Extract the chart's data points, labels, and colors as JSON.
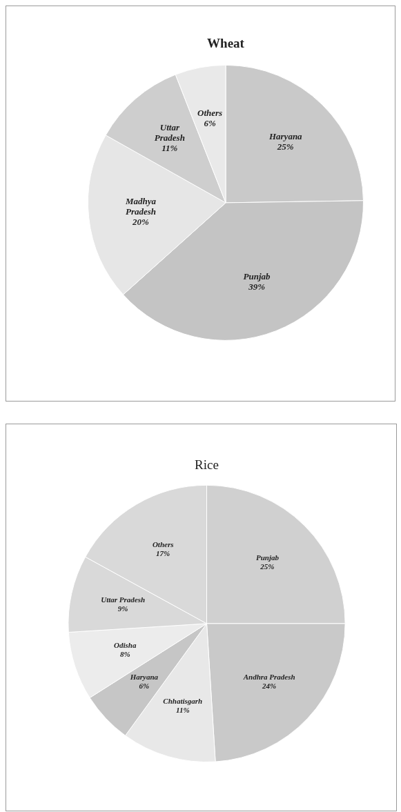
{
  "chart_data": [
    {
      "type": "pie",
      "title": "Wheat",
      "categories": [
        "Haryana",
        "Punjab",
        "Madhya Pradesh",
        "Uttar Pradesh",
        "Others"
      ],
      "values": [
        25,
        39,
        20,
        11,
        6
      ],
      "value_labels": [
        "25%",
        "39%",
        "20%",
        "11%",
        "6%"
      ],
      "colors": [
        "#c9c9c9",
        "#c4c4c4",
        "#e6e6e6",
        "#cecece",
        "#e9e9e9"
      ],
      "legend": false
    },
    {
      "type": "pie",
      "title": "Rice",
      "categories": [
        "Punjab",
        "Andhra Pradesh",
        "Chhatisgarh",
        "Haryana",
        "Odisha",
        "Uttar Pradesh",
        "Others"
      ],
      "values": [
        25,
        24,
        11,
        6,
        8,
        9,
        17
      ],
      "value_labels": [
        "25%",
        "24%",
        "11%",
        "6%",
        "8%",
        "9%",
        "17%"
      ],
      "colors": [
        "#d0d0d0",
        "#c9c9c9",
        "#e8e8e8",
        "#c6c6c6",
        "#ececec",
        "#d9d9d9",
        "#d9d9d9"
      ],
      "legend": false
    }
  ]
}
